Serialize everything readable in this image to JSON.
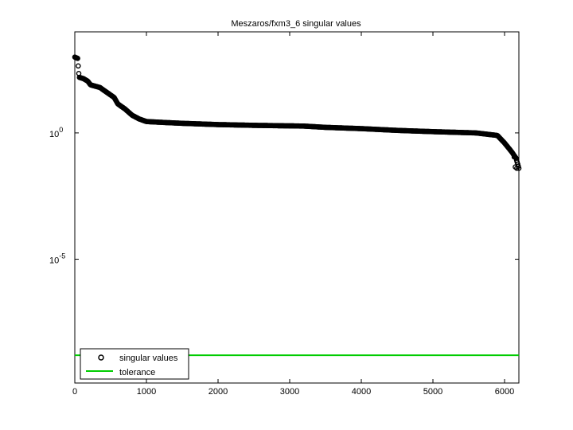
{
  "chart_data": {
    "type": "scatter",
    "title": "Meszaros/fxm3_6 singular values",
    "xlabel": "",
    "ylabel": "",
    "xlim": [
      0,
      6200
    ],
    "ylim_log10": [
      -9.9,
      4.0
    ],
    "yscale": "log",
    "grid": false,
    "legend_position": "bottom-left",
    "x_ticks": [
      "0",
      "1000",
      "2000",
      "3000",
      "4000",
      "5000",
      "6000"
    ],
    "x_tick_values": [
      0,
      1000,
      2000,
      3000,
      4000,
      5000,
      6000
    ],
    "y_ticks": [
      {
        "value_log10": 0,
        "base": "10",
        "exp": "0"
      },
      {
        "value_log10": -5,
        "base": "10",
        "exp": "-5"
      }
    ],
    "series": [
      {
        "name": "singular values",
        "marker": "circle-open",
        "color": "#000000",
        "curve_log10": [
          [
            0,
            3.0
          ],
          [
            40,
            2.95
          ],
          [
            60,
            2.2
          ],
          [
            120,
            2.15
          ],
          [
            180,
            2.05
          ],
          [
            220,
            1.9
          ],
          [
            350,
            1.8
          ],
          [
            450,
            1.6
          ],
          [
            550,
            1.4
          ],
          [
            600,
            1.15
          ],
          [
            700,
            0.95
          ],
          [
            800,
            0.7
          ],
          [
            900,
            0.55
          ],
          [
            1000,
            0.45
          ],
          [
            1200,
            0.42
          ],
          [
            1500,
            0.38
          ],
          [
            2000,
            0.33
          ],
          [
            2500,
            0.3
          ],
          [
            3200,
            0.27
          ],
          [
            3500,
            0.22
          ],
          [
            4000,
            0.17
          ],
          [
            4500,
            0.1
          ],
          [
            5000,
            0.05
          ],
          [
            5600,
            0.0
          ],
          [
            5900,
            -0.1
          ],
          [
            6000,
            -0.4
          ],
          [
            6100,
            -0.75
          ],
          [
            6160,
            -1.0
          ],
          [
            6200,
            -1.4
          ]
        ],
        "outliers": [
          [
            6135,
            -0.95
          ],
          [
            6150,
            -1.35
          ],
          [
            6170,
            -1.4
          ]
        ]
      },
      {
        "name": "tolerance",
        "type": "line",
        "color": "#00cc00",
        "value_log10": -8.8
      }
    ]
  }
}
